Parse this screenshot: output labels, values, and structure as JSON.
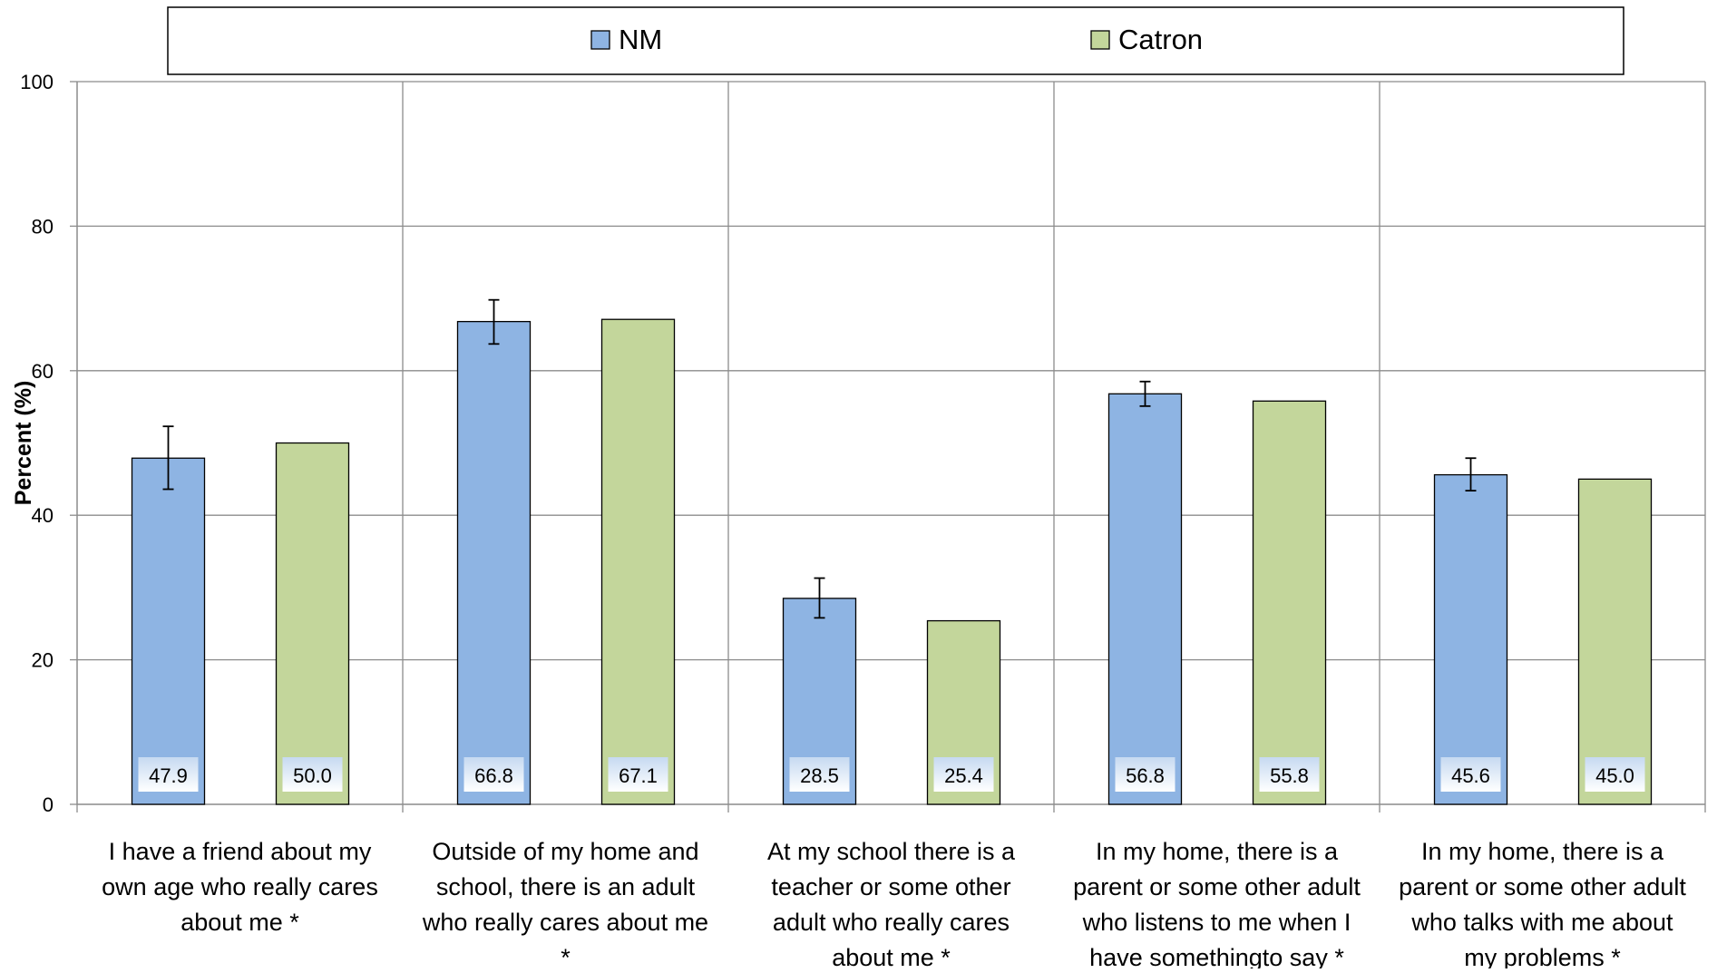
{
  "chart_data": {
    "type": "bar",
    "ylabel": "Percent (%)",
    "xlabel": "",
    "ylim": [
      0,
      100
    ],
    "yticks": [
      0,
      20,
      40,
      60,
      80,
      100
    ],
    "grid": true,
    "legend_position": "top",
    "categories": [
      [
        "I have a friend about my",
        "own age who really cares",
        "about me *"
      ],
      [
        "Outside of my home and",
        "school, there is an adult",
        "who really cares about me",
        "*"
      ],
      [
        "At my school there is a",
        "teacher or some other",
        "adult who really cares",
        "about me *"
      ],
      [
        "In my home, there is a",
        "parent or some other adult",
        "who listens to me when I",
        "have somethingto say *"
      ],
      [
        "In my home, there is a",
        "parent or some other adult",
        "who talks with me about",
        "my problems *"
      ]
    ],
    "series": [
      {
        "name": "NM",
        "color": "#8eb4e3",
        "values": [
          47.9,
          66.8,
          28.5,
          56.8,
          45.6
        ],
        "labels": [
          "47.9",
          "66.8",
          "28.5",
          "56.8",
          "45.6"
        ],
        "error_low": [
          43.6,
          63.7,
          25.8,
          55.1,
          43.4
        ],
        "error_high": [
          52.3,
          69.8,
          31.3,
          58.5,
          47.9
        ]
      },
      {
        "name": "Catron",
        "color": "#c3d69b",
        "values": [
          50.0,
          67.1,
          25.4,
          55.8,
          45.0
        ],
        "labels": [
          "50.0",
          "67.1",
          "25.4",
          "55.8",
          "45.0"
        ]
      }
    ]
  }
}
